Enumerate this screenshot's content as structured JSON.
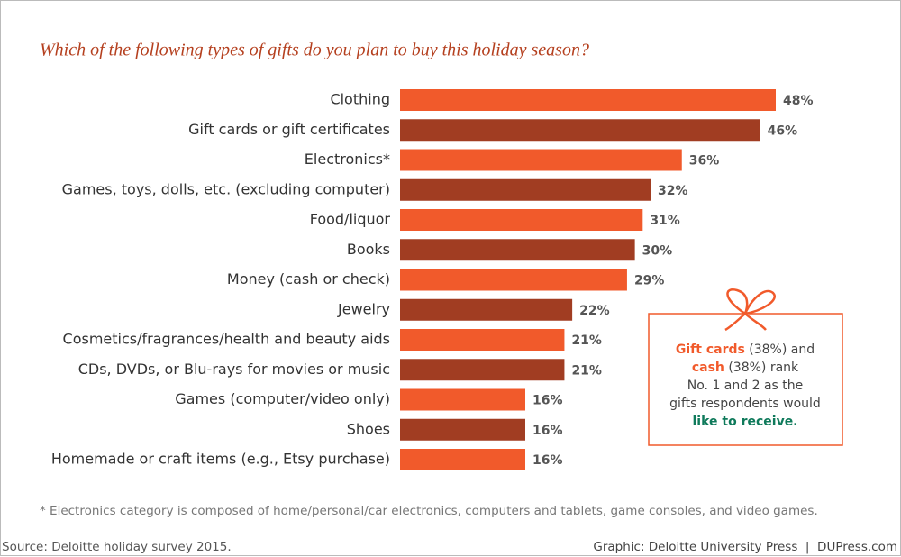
{
  "chart_data": {
    "type": "bar",
    "orientation": "horizontal",
    "title": "Which of the following types of gifts do you plan to buy this holiday season?",
    "categories": [
      "Clothing",
      "Gift cards or gift certificates",
      "Electronics*",
      "Games, toys, dolls, etc. (excluding computer)",
      "Food/liquor",
      "Books",
      "Money (cash or check)",
      "Jewelry",
      "Cosmetics/fragrances/health and beauty aids",
      "CDs, DVDs, or Blu-rays for movies or music",
      "Games (computer/video only)",
      "Shoes",
      "Homemade or craft items (e.g., Etsy purchase)"
    ],
    "values": [
      48,
      46,
      36,
      32,
      31,
      30,
      29,
      22,
      21,
      21,
      16,
      16,
      16
    ],
    "value_labels": [
      "48%",
      "46%",
      "36%",
      "32%",
      "31%",
      "30%",
      "29%",
      "22%",
      "21%",
      "21%",
      "16%",
      "16%",
      "16%"
    ],
    "colors": [
      "#f15a2b",
      "#a13d22",
      "#f15a2b",
      "#a13d22",
      "#f15a2b",
      "#a13d22",
      "#f15a2b",
      "#a13d22",
      "#f15a2b",
      "#a13d22",
      "#f15a2b",
      "#a13d22",
      "#f15a2b"
    ],
    "annotation": [
      [
        {
          "text": "Gift cards",
          "color": "#f15a2b"
        },
        {
          "text": " (38%) and"
        }
      ],
      [
        {
          "text": "cash",
          "color": "#f15a2b"
        },
        {
          "text": " (38%) rank"
        }
      ],
      [
        {
          "text": "No. 1 and 2 as the"
        }
      ],
      [
        {
          "text": "gifts respondents would"
        }
      ],
      [
        {
          "text": "like to receive.",
          "color": "#0f7a5b"
        }
      ]
    ],
    "footnote": "* Electronics category is composed of home/personal/car electronics, computers and tablets, game consoles, and video games.",
    "source": "Source: Deloitte holiday survey 2015.",
    "credit": "Graphic: Deloitte University Press  |  DUPress.com"
  }
}
